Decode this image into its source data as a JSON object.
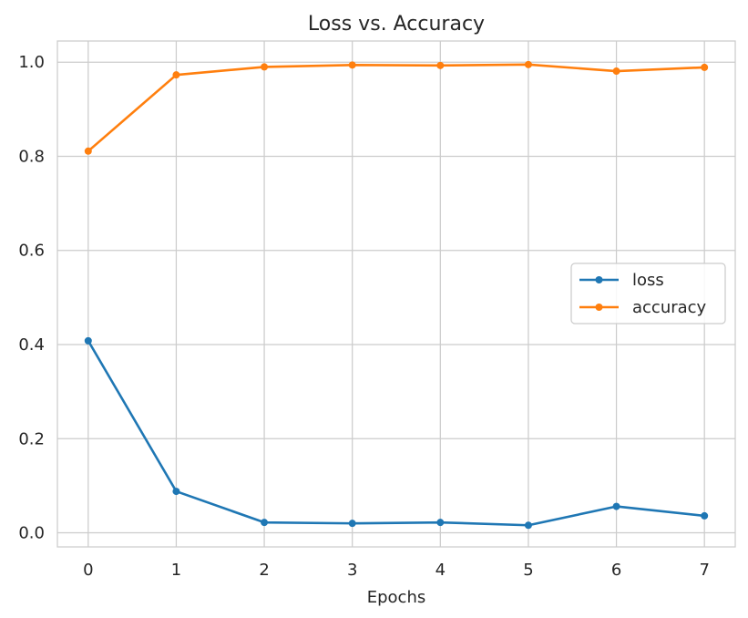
{
  "chart_data": {
    "type": "line",
    "title": "Loss vs. Accuracy",
    "xlabel": "Epochs",
    "ylabel": "",
    "x": [
      0,
      1,
      2,
      3,
      4,
      5,
      6,
      7
    ],
    "xlim": [
      -0.35,
      7.35
    ],
    "ylim": [
      -0.03,
      1.045
    ],
    "x_ticks": [
      "0",
      "1",
      "2",
      "3",
      "4",
      "5",
      "6",
      "7"
    ],
    "y_ticks": [
      "0.0",
      "0.2",
      "0.4",
      "0.6",
      "0.8",
      "1.0"
    ],
    "grid": true,
    "legend_position": "center-right",
    "series": [
      {
        "name": "loss",
        "color": "#1f77b4",
        "values": [
          0.408,
          0.088,
          0.022,
          0.02,
          0.022,
          0.016,
          0.056,
          0.036
        ]
      },
      {
        "name": "accuracy",
        "color": "#ff7f0e",
        "values": [
          0.811,
          0.973,
          0.99,
          0.994,
          0.993,
          0.995,
          0.981,
          0.989
        ]
      }
    ]
  }
}
